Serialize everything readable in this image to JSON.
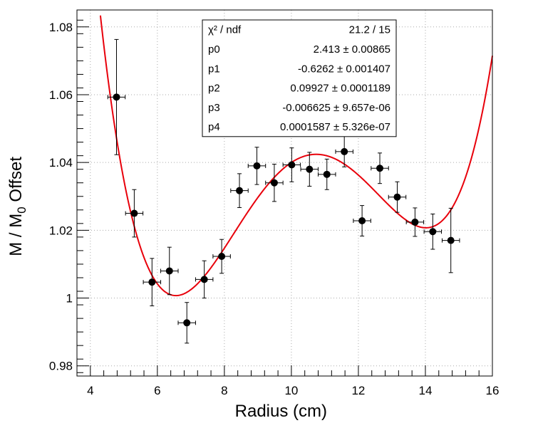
{
  "chart_data": {
    "type": "scatter",
    "title": "",
    "xlabel": "Radius (cm)",
    "ylabel": {
      "pre": "M / M",
      "sub": "0",
      "post": "  Offset"
    },
    "xlim": [
      3.6,
      16.0
    ],
    "ylim": [
      0.977,
      1.085
    ],
    "xticks": [
      4,
      6,
      8,
      10,
      12,
      14,
      16
    ],
    "xtick_labels": [
      "4",
      "6",
      "8",
      "10",
      "12",
      "14",
      "16"
    ],
    "yticks": [
      0.98,
      1.0,
      1.02,
      1.04,
      1.06,
      1.08
    ],
    "ytick_labels": [
      "0.98",
      "1",
      "1.02",
      "1.04",
      "1.06",
      "1.08"
    ],
    "grid": true,
    "series": [
      {
        "type": "scatter",
        "color": "#000000",
        "points": [
          {
            "x": 4.78,
            "y": 1.0593,
            "ex": 0.26,
            "ey": 0.017
          },
          {
            "x": 5.31,
            "y": 1.025,
            "ex": 0.26,
            "ey": 0.007
          },
          {
            "x": 5.84,
            "y": 1.0047,
            "ex": 0.26,
            "ey": 0.007
          },
          {
            "x": 6.36,
            "y": 1.008,
            "ex": 0.26,
            "ey": 0.007
          },
          {
            "x": 6.88,
            "y": 0.9927,
            "ex": 0.26,
            "ey": 0.006
          },
          {
            "x": 7.4,
            "y": 1.0055,
            "ex": 0.26,
            "ey": 0.0055
          },
          {
            "x": 7.92,
            "y": 1.0123,
            "ex": 0.26,
            "ey": 0.005
          },
          {
            "x": 8.45,
            "y": 1.0317,
            "ex": 0.26,
            "ey": 0.005
          },
          {
            "x": 8.97,
            "y": 1.039,
            "ex": 0.26,
            "ey": 0.0055
          },
          {
            "x": 9.49,
            "y": 1.034,
            "ex": 0.26,
            "ey": 0.0055
          },
          {
            "x": 10.01,
            "y": 1.0393,
            "ex": 0.26,
            "ey": 0.005
          },
          {
            "x": 10.54,
            "y": 1.038,
            "ex": 0.26,
            "ey": 0.005
          },
          {
            "x": 11.06,
            "y": 1.0365,
            "ex": 0.26,
            "ey": 0.0045
          },
          {
            "x": 11.58,
            "y": 1.0432,
            "ex": 0.26,
            "ey": 0.0045
          },
          {
            "x": 12.11,
            "y": 1.0228,
            "ex": 0.26,
            "ey": 0.0045
          },
          {
            "x": 12.64,
            "y": 1.0383,
            "ex": 0.26,
            "ey": 0.0045
          },
          {
            "x": 13.16,
            "y": 1.0298,
            "ex": 0.26,
            "ey": 0.0045
          },
          {
            "x": 13.69,
            "y": 1.0224,
            "ex": 0.26,
            "ey": 0.0042
          },
          {
            "x": 14.22,
            "y": 1.0196,
            "ex": 0.26,
            "ey": 0.0052
          },
          {
            "x": 14.76,
            "y": 1.017,
            "ex": 0.26,
            "ey": 0.0095
          }
        ]
      },
      {
        "type": "line",
        "color": "#e8000b",
        "function": "pol4",
        "params": [
          2.413,
          -0.6262,
          0.09927,
          -0.006625,
          0.0001587
        ]
      }
    ],
    "stats_box": {
      "rows": [
        {
          "name": "χ² / ndf",
          "value": "21.2 / 15"
        },
        {
          "name": "p0",
          "value": "2.413 ± 0.00865"
        },
        {
          "name": "p1",
          "value": "-0.6262 ± 0.001407"
        },
        {
          "name": "p2",
          "value": "0.09927 ± 0.0001189"
        },
        {
          "name": "p3",
          "value": "-0.006625 ± 9.657e-06"
        },
        {
          "name": "p4",
          "value": "0.0001587 ± 5.326e-07"
        }
      ]
    }
  }
}
